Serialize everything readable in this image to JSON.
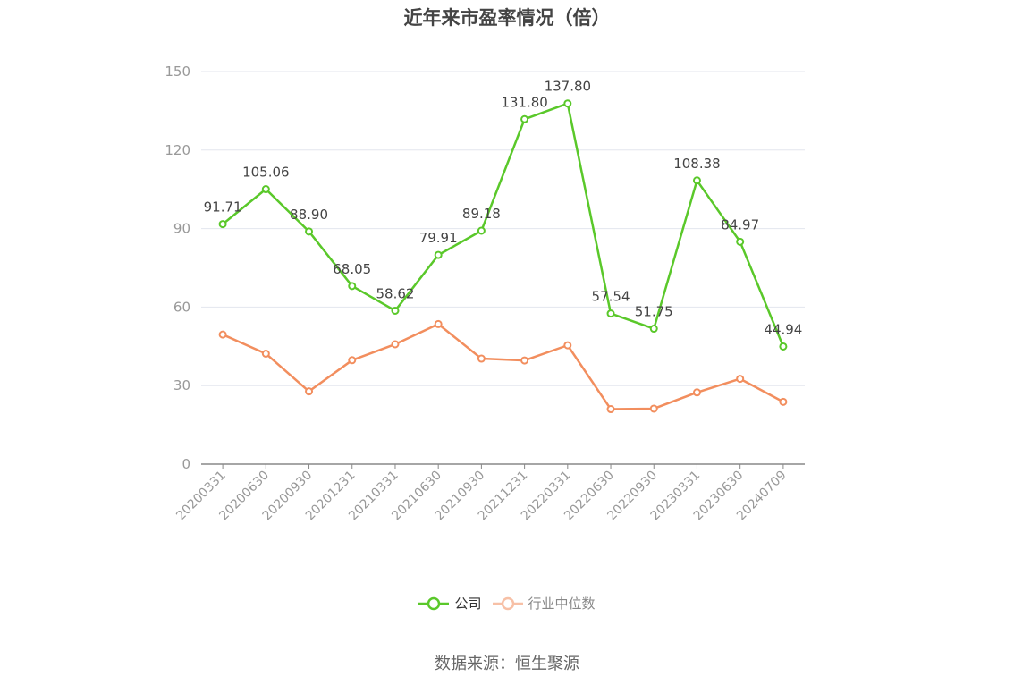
{
  "chart_data": {
    "type": "line",
    "title": "近年来市盈率情况（倍）",
    "categories": [
      "20200331",
      "20200630",
      "20200930",
      "20201231",
      "20210331",
      "20210630",
      "20210930",
      "20211231",
      "20220331",
      "20220630",
      "20220930",
      "20230331",
      "20230630",
      "20240709"
    ],
    "series": [
      {
        "name": "公司",
        "color": "#5ac82a",
        "values": [
          91.71,
          105.06,
          88.9,
          68.05,
          58.62,
          79.91,
          89.18,
          131.8,
          137.8,
          57.54,
          51.75,
          108.38,
          84.97,
          44.94
        ],
        "labels": [
          "91.71",
          "105.06",
          "88.90",
          "68.05",
          "58.62",
          "79.91",
          "89.18",
          "131.80",
          "137.80",
          "57.54",
          "51.75",
          "108.38",
          "84.97",
          "44.94"
        ]
      },
      {
        "name": "行业中位数",
        "color": "#f28e5e",
        "values": [
          49.5,
          42.2,
          27.8,
          39.7,
          45.8,
          53.5,
          40.3,
          39.6,
          45.4,
          21.0,
          21.2,
          27.4,
          32.6,
          23.8
        ]
      }
    ],
    "ylim": [
      0,
      150
    ],
    "yticks": [
      0,
      30,
      60,
      90,
      120,
      150
    ],
    "grid": true,
    "legend": "bottom-center"
  },
  "source": "数据来源：恒生聚源"
}
